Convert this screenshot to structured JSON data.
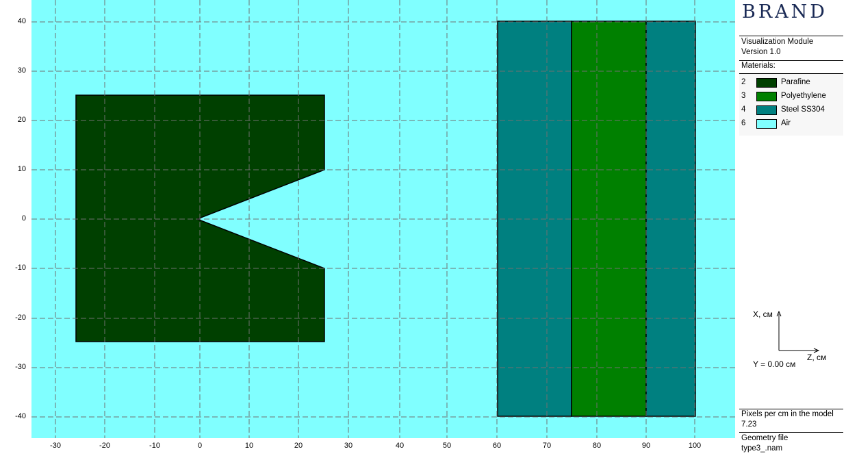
{
  "plot": {
    "background_color": "#80ffff",
    "z_ticks": [
      "-30",
      "-20",
      "-10",
      "0",
      "10",
      "20",
      "30",
      "40",
      "50",
      "60",
      "70",
      "80",
      "90",
      "100"
    ],
    "x_ticks": [
      "40",
      "30",
      "20",
      "10",
      "0",
      "-10",
      "-20",
      "-30",
      "-40"
    ],
    "regions": [
      {
        "name": "parafine-region",
        "material": "Parafine",
        "color": "#004000"
      },
      {
        "name": "steel-left-region",
        "material": "Steel SS304",
        "color": "#008080"
      },
      {
        "name": "polyethylene-region",
        "material": "Polyethylene",
        "color": "#008000"
      },
      {
        "name": "steel-right-region",
        "material": "Steel SS304",
        "color": "#008080"
      }
    ]
  },
  "panel": {
    "brand": "BRAND",
    "module": "Visualization Module",
    "version": "Version 1.0",
    "materials_label": "Materials:",
    "materials": [
      {
        "num": "2",
        "name": "Parafine",
        "color": "#004000"
      },
      {
        "num": "3",
        "name": "Polyethylene",
        "color": "#008000"
      },
      {
        "num": "4",
        "name": "Steel SS304",
        "color": "#008080"
      },
      {
        "num": "6",
        "name": "Air",
        "color": "#80ffff"
      }
    ],
    "axis_x_label": "X, см",
    "axis_z_label": "Z, см",
    "y_value": "Y = 0.00 см",
    "pixels_label": "Pixels per cm in the model",
    "pixels_value": "7.23",
    "geometry_label": "Geometry file",
    "geometry_value": "type3_.nam"
  }
}
